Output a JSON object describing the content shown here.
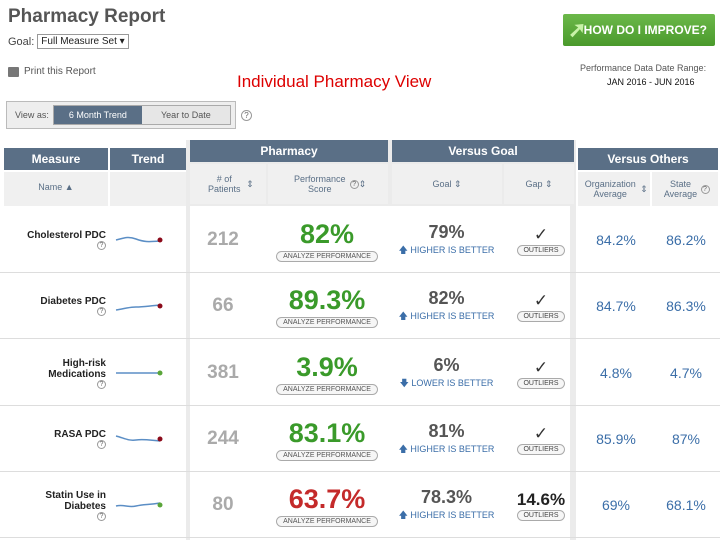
{
  "page": {
    "title": "Pharmacy Report",
    "goal_label": "Goal:",
    "goal_value": "Full Measure Set",
    "print_label": "Print this Report",
    "improve_button": "HOW DO I IMPROVE?",
    "view_title": "Individual Pharmacy View",
    "date_range_label": "Performance Data Date Range:",
    "date_range": "JAN 2016 - JUN 2016"
  },
  "viewas": {
    "label": "View as:",
    "options": [
      "6 Month Trend",
      "Year to Date"
    ],
    "selected": "6 Month Trend"
  },
  "headers": {
    "measure": "Measure",
    "trend": "Trend",
    "pharmacy": "Pharmacy",
    "versus_goal": "Versus Goal",
    "versus_others": "Versus Others",
    "name": "Name",
    "patients": "# of Patients",
    "performance_score": "Performance Score",
    "goal": "Goal",
    "gap": "Gap",
    "org_avg": "Organization Average",
    "state_avg": "State Average"
  },
  "labels": {
    "analyze": "ANALYZE PERFORMANCE",
    "outliers": "OUTLIERS"
  },
  "rows": [
    {
      "name": "Cholesterol PDC",
      "patients": "212",
      "score": "82%",
      "score_color": "#3a9a2a",
      "goal": "79%",
      "direction": "HIGHER IS BETTER",
      "direction_icon": "up-arrow",
      "gap_check": "✓",
      "gap": "",
      "org": "84.2%",
      "state": "86.2%",
      "trend_color": "#8b0a1a"
    },
    {
      "name": "Diabetes PDC",
      "patients": "66",
      "score": "89.3%",
      "score_color": "#3a9a2a",
      "goal": "82%",
      "direction": "HIGHER IS BETTER",
      "direction_icon": "up-arrow",
      "gap_check": "✓",
      "gap": "",
      "org": "84.7%",
      "state": "86.3%",
      "trend_color": "#8b0a1a"
    },
    {
      "name": "High-risk Medications",
      "patients": "381",
      "score": "3.9%",
      "score_color": "#3a9a2a",
      "goal": "6%",
      "direction": "LOWER IS BETTER",
      "direction_icon": "down-arrow",
      "gap_check": "✓",
      "gap": "",
      "org": "4.8%",
      "state": "4.7%",
      "trend_color": "#5aa53a"
    },
    {
      "name": "RASA PDC",
      "patients": "244",
      "score": "83.1%",
      "score_color": "#3a9a2a",
      "goal": "81%",
      "direction": "HIGHER IS BETTER",
      "direction_icon": "up-arrow",
      "gap_check": "✓",
      "gap": "",
      "org": "85.9%",
      "state": "87%",
      "trend_color": "#8b0a1a"
    },
    {
      "name": "Statin Use in Diabetes",
      "patients": "80",
      "score": "63.7%",
      "score_color": "#c42a2a",
      "goal": "78.3%",
      "direction": "HIGHER IS BETTER",
      "direction_icon": "up-arrow",
      "gap_check": "",
      "gap": "14.6%",
      "org": "69%",
      "state": "68.1%",
      "trend_color": "#5aa53a"
    }
  ]
}
